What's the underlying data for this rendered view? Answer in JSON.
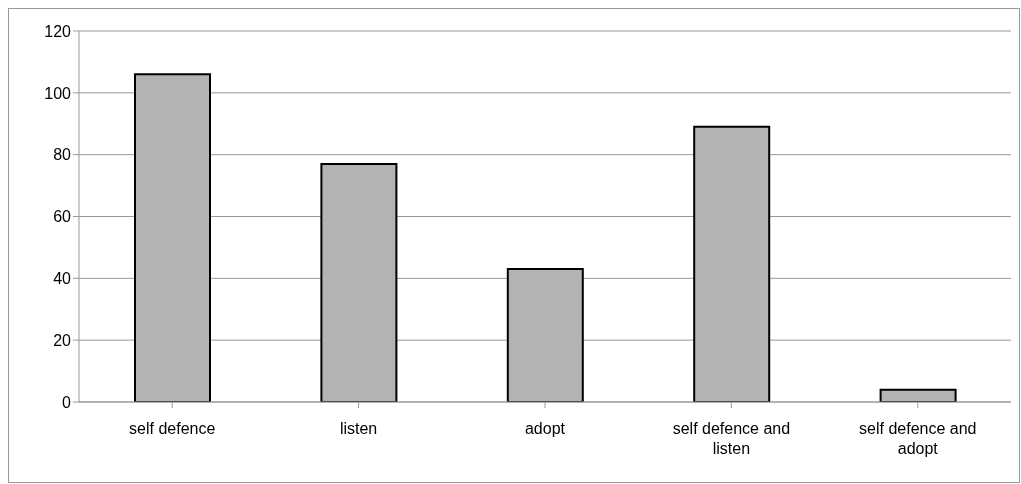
{
  "chart_data": {
    "type": "bar",
    "categories": [
      "self defence",
      "listen",
      "adopt",
      "self defence and listen",
      "self defence and adopt"
    ],
    "values": [
      106,
      77,
      43,
      89,
      4
    ],
    "color": "#b3b3b3",
    "ylim": [
      0,
      120
    ],
    "yticks": [
      0,
      20,
      40,
      60,
      80,
      100,
      120
    ],
    "grid": "y"
  }
}
